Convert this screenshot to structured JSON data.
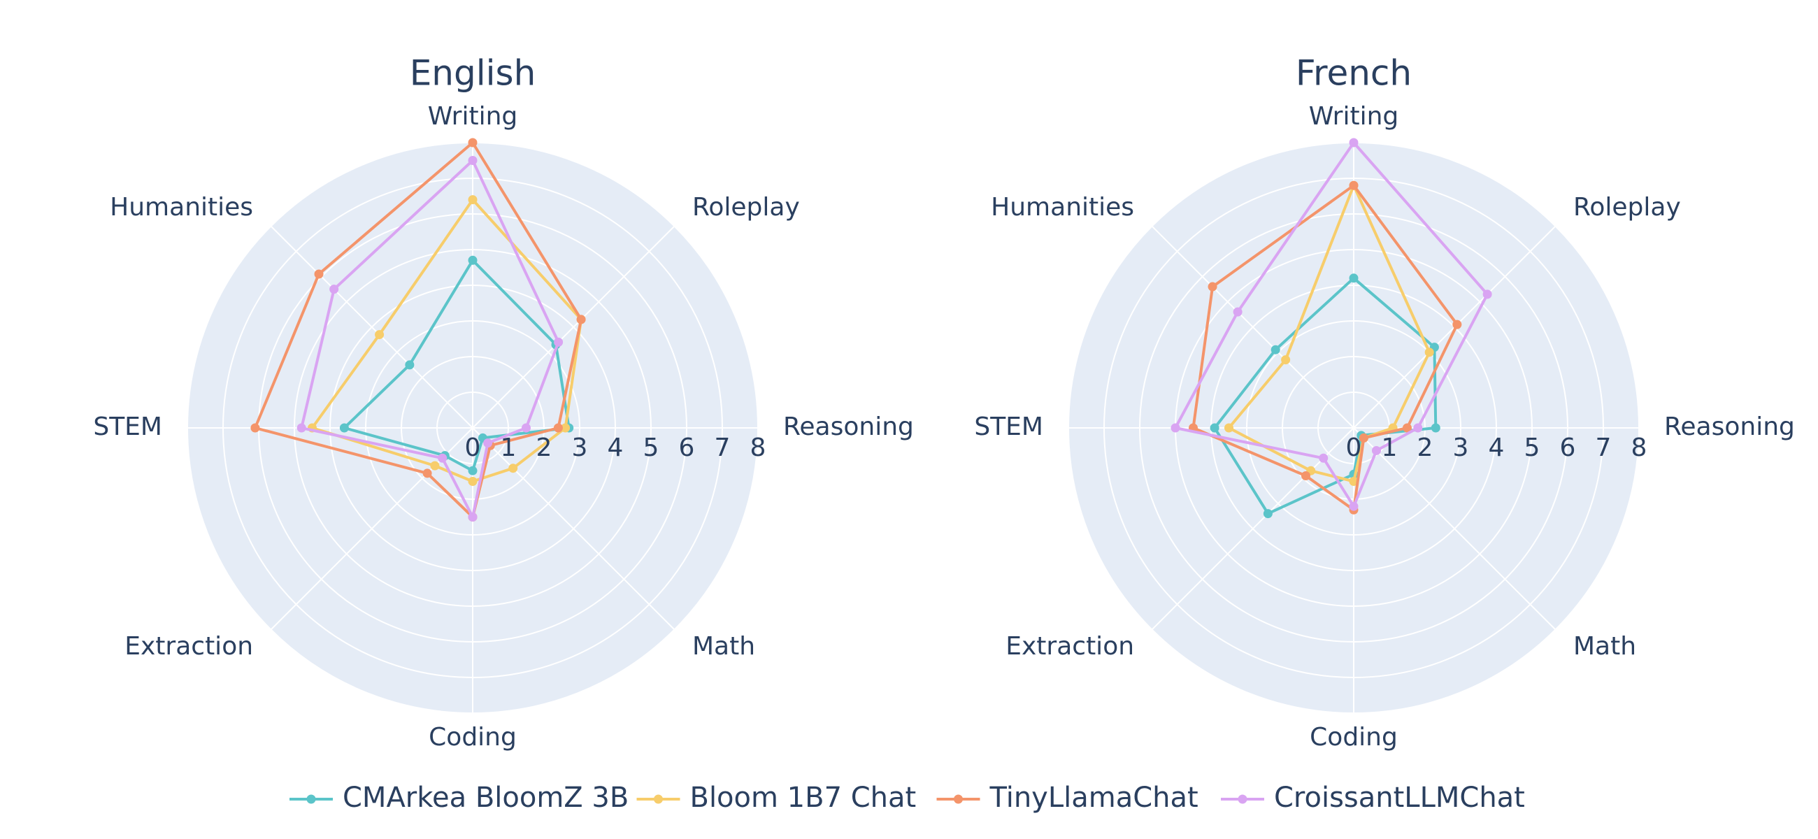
{
  "chart_data": [
    {
      "type": "radar",
      "title": "English",
      "categories": [
        "Writing",
        "Roleplay",
        "Reasoning",
        "Math",
        "Coding",
        "Extraction",
        "STEM",
        "Humanities"
      ],
      "radial_ticks": [
        "0",
        "1",
        "2",
        "3",
        "4",
        "5",
        "6",
        "7",
        "8"
      ],
      "r_range": [
        0,
        8
      ],
      "series": [
        {
          "name": "CMArkea BloomZ 3B",
          "values": [
            4.7,
            3.3,
            2.7,
            0.4,
            1.2,
            1.1,
            3.6,
            2.5
          ]
        },
        {
          "name": "Bloom 1B7 Chat",
          "values": [
            6.4,
            4.3,
            2.6,
            1.6,
            1.5,
            1.5,
            4.5,
            3.7
          ]
        },
        {
          "name": "TinyLlamaChat",
          "values": [
            8.0,
            4.3,
            2.4,
            0.7,
            2.5,
            1.8,
            6.1,
            6.1
          ]
        },
        {
          "name": "CroissantLLMChat",
          "values": [
            7.5,
            3.4,
            1.5,
            0.6,
            2.5,
            1.2,
            4.8,
            5.5
          ]
        }
      ]
    },
    {
      "type": "radar",
      "title": "French",
      "categories": [
        "Writing",
        "Roleplay",
        "Reasoning",
        "Math",
        "Coding",
        "Extraction",
        "STEM",
        "Humanities"
      ],
      "radial_ticks": [
        "0",
        "1",
        "2",
        "3",
        "4",
        "5",
        "6",
        "7",
        "8"
      ],
      "r_range": [
        0,
        8
      ],
      "series": [
        {
          "name": "CMArkea BloomZ 3B",
          "values": [
            4.2,
            3.2,
            2.3,
            0.3,
            1.3,
            3.4,
            3.9,
            3.1
          ]
        },
        {
          "name": "Bloom 1B7 Chat",
          "values": [
            6.8,
            3.0,
            1.1,
            0.4,
            1.5,
            1.7,
            3.5,
            2.7
          ]
        },
        {
          "name": "TinyLlamaChat",
          "values": [
            6.8,
            4.1,
            1.5,
            0.4,
            2.3,
            1.9,
            4.5,
            5.6
          ]
        },
        {
          "name": "CroissantLLMChat",
          "values": [
            8.0,
            5.3,
            1.8,
            0.9,
            2.2,
            1.2,
            5.0,
            4.6
          ]
        }
      ]
    }
  ],
  "legend": {
    "items": [
      "CMArkea BloomZ 3B",
      "Bloom 1B7 Chat",
      "TinyLlamaChat",
      "CroissantLLMChat"
    ],
    "placement": "bottom-center"
  },
  "colors": {
    "CMArkea BloomZ 3B": "#5bc4c9",
    "Bloom 1B7 Chat": "#f7cd6b",
    "TinyLlamaChat": "#f4946a",
    "CroissantLLMChat": "#d9a4f2",
    "polar_bg": "#e5ecf6",
    "grid": "#ffffff",
    "text": "#2a3f5f"
  }
}
